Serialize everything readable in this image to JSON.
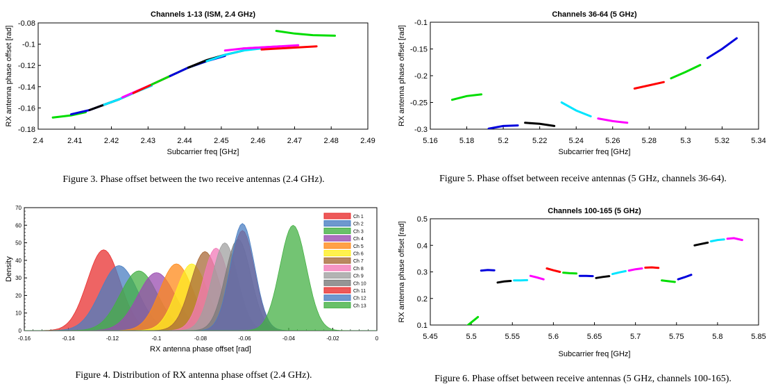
{
  "captions": {
    "fig3": "Figure 3.  Phase offset between the two receive antennas (2.4 GHz).",
    "fig4": "Figure 4.  Distribution of RX antenna phase offset (2.4 GHz).",
    "fig5": "Figure 5.  Phase offset between receive antennas (5 GHz, channels 36-64).",
    "fig6": "Figure 6.  Phase offset between receive antennas (5 GHz, channels 100-165)."
  },
  "chart_data": [
    {
      "id": "fig3",
      "type": "line",
      "title": "Channels 1-13 (ISM, 2.4 GHz)",
      "xlabel": "Subcarrier freq [GHz]",
      "ylabel": "RX antenna phase offset [rad]",
      "xlim": [
        2.4,
        2.49
      ],
      "ylim": [
        -0.18,
        -0.08
      ],
      "xticks": [
        "2.4",
        "2.41",
        "2.42",
        "2.43",
        "2.44",
        "2.45",
        "2.46",
        "2.47",
        "2.48",
        "2.49"
      ],
      "yticks": [
        "-0.18",
        "-0.16",
        "-0.14",
        "-0.12",
        "-0.1",
        "-0.08"
      ],
      "series": [
        {
          "color": "#00dd00",
          "x": [
            2.404,
            2.409,
            2.413
          ],
          "y": [
            -0.169,
            -0.167,
            -0.164
          ]
        },
        {
          "color": "#0000dd",
          "x": [
            2.409,
            2.414,
            2.418,
            2.422
          ],
          "y": [
            -0.166,
            -0.162,
            -0.157,
            -0.152
          ]
        },
        {
          "color": "#000000",
          "x": [
            2.414,
            2.418,
            2.422,
            2.426
          ],
          "y": [
            -0.162,
            -0.157,
            -0.152,
            -0.146
          ]
        },
        {
          "color": "#00e5ff",
          "x": [
            2.418,
            2.422,
            2.426,
            2.431
          ],
          "y": [
            -0.157,
            -0.152,
            -0.146,
            -0.139
          ]
        },
        {
          "color": "#ff00ff",
          "x": [
            2.423,
            2.427,
            2.431,
            2.436
          ],
          "y": [
            -0.15,
            -0.144,
            -0.138,
            -0.13
          ]
        },
        {
          "color": "#ff0000",
          "x": [
            2.426,
            2.431,
            2.436,
            2.441
          ],
          "y": [
            -0.146,
            -0.138,
            -0.13,
            -0.122
          ]
        },
        {
          "color": "#00dd00",
          "x": [
            2.431,
            2.436,
            2.441,
            2.446
          ],
          "y": [
            -0.138,
            -0.13,
            -0.122,
            -0.116
          ]
        },
        {
          "color": "#0000dd",
          "x": [
            2.436,
            2.441,
            2.446,
            2.451
          ],
          "y": [
            -0.13,
            -0.122,
            -0.116,
            -0.111
          ]
        },
        {
          "color": "#000000",
          "x": [
            2.441,
            2.446,
            2.451,
            2.456
          ],
          "y": [
            -0.122,
            -0.115,
            -0.11,
            -0.106
          ]
        },
        {
          "color": "#00e5ff",
          "x": [
            2.446,
            2.451,
            2.456,
            2.461
          ],
          "y": [
            -0.116,
            -0.11,
            -0.106,
            -0.104
          ]
        },
        {
          "color": "#ff00ff",
          "x": [
            2.451,
            2.456,
            2.461,
            2.466
          ],
          "y": [
            -0.106,
            -0.104,
            -0.103,
            -0.102
          ]
        },
        {
          "color": "#ff00ff",
          "x": [
            2.456,
            2.461,
            2.466,
            2.471
          ],
          "y": [
            -0.104,
            -0.103,
            -0.102,
            -0.101
          ]
        },
        {
          "color": "#ff0000",
          "x": [
            2.461,
            2.466,
            2.471,
            2.476
          ],
          "y": [
            -0.105,
            -0.104,
            -0.103,
            -0.102
          ]
        },
        {
          "color": "#00dd00",
          "x": [
            2.465,
            2.47,
            2.475,
            2.481
          ],
          "y": [
            -0.0875,
            -0.09,
            -0.0915,
            -0.092
          ]
        }
      ]
    },
    {
      "id": "fig4",
      "type": "area",
      "title": "",
      "xlabel": "RX antenna phase offset [rad]",
      "ylabel": "Density",
      "xlim": [
        -0.16,
        0
      ],
      "ylim": [
        0,
        70
      ],
      "xticks": [
        "-0.16",
        "-0.14",
        "-0.12",
        "-0.1",
        "-0.08",
        "-0.06",
        "-0.04",
        "-0.02",
        "0"
      ],
      "yticks": [
        "0",
        "10",
        "20",
        "30",
        "40",
        "50",
        "60",
        "70"
      ],
      "legend_position": "top-right",
      "series": [
        {
          "name": "Ch 1",
          "color": "#e83030",
          "mean": -0.124,
          "peak": 46,
          "sigma": 0.0075
        },
        {
          "name": "Ch 2",
          "color": "#4a7ec2",
          "mean": -0.117,
          "peak": 37,
          "sigma": 0.0085
        },
        {
          "name": "Ch 3",
          "color": "#44b044",
          "mean": -0.108,
          "peak": 34,
          "sigma": 0.0085
        },
        {
          "name": "Ch 4",
          "color": "#9a4cb0",
          "mean": -0.1,
          "peak": 33,
          "sigma": 0.0085
        },
        {
          "name": "Ch 5",
          "color": "#ff8a1a",
          "mean": -0.091,
          "peak": 38,
          "sigma": 0.0075
        },
        {
          "name": "Ch 6",
          "color": "#ffee22",
          "mean": -0.084,
          "peak": 38,
          "sigma": 0.007
        },
        {
          "name": "Ch 7",
          "color": "#a86a38",
          "mean": -0.078,
          "peak": 45,
          "sigma": 0.0065
        },
        {
          "name": "Ch 8",
          "color": "#f27ab8",
          "mean": -0.073,
          "peak": 47,
          "sigma": 0.006
        },
        {
          "name": "Ch 9",
          "color": "#a0a0a0",
          "mean": -0.069,
          "peak": 50,
          "sigma": 0.0058
        },
        {
          "name": "Ch 10",
          "color": "#7a7a7a",
          "mean": -0.063,
          "peak": 52,
          "sigma": 0.0058
        },
        {
          "name": "Ch 11",
          "color": "#e83030",
          "mean": -0.061,
          "peak": 57,
          "sigma": 0.0055
        },
        {
          "name": "Ch 12",
          "color": "#4a7ec2",
          "mean": -0.061,
          "peak": 61,
          "sigma": 0.0055
        },
        {
          "name": "Ch 13",
          "color": "#44b044",
          "mean": -0.038,
          "peak": 60,
          "sigma": 0.006
        }
      ]
    },
    {
      "id": "fig5",
      "type": "line",
      "title": "Channels 36-64 (5 GHz)",
      "xlabel": "Subcarrier freq [GHz]",
      "ylabel": "RX antenna phase offset [rad]",
      "xlim": [
        5.16,
        5.34
      ],
      "ylim": [
        -0.3,
        -0.1
      ],
      "xticks": [
        "5.16",
        "5.18",
        "5.2",
        "5.22",
        "5.24",
        "5.26",
        "5.28",
        "5.3",
        "5.32",
        "5.34"
      ],
      "yticks": [
        "-0.3",
        "-0.25",
        "-0.2",
        "-0.15",
        "-0.1"
      ],
      "series": [
        {
          "color": "#00dd00",
          "x": [
            5.172,
            5.18,
            5.188
          ],
          "y": [
            -0.245,
            -0.238,
            -0.235
          ]
        },
        {
          "color": "#0000dd",
          "x": [
            5.192,
            5.2,
            5.208
          ],
          "y": [
            -0.299,
            -0.294,
            -0.293
          ]
        },
        {
          "color": "#000000",
          "x": [
            5.212,
            5.22,
            5.228
          ],
          "y": [
            -0.288,
            -0.29,
            -0.294
          ]
        },
        {
          "color": "#00e5ff",
          "x": [
            5.232,
            5.24,
            5.248
          ],
          "y": [
            -0.25,
            -0.265,
            -0.276
          ]
        },
        {
          "color": "#ff00ff",
          "x": [
            5.252,
            5.26,
            5.268
          ],
          "y": [
            -0.28,
            -0.285,
            -0.288
          ]
        },
        {
          "color": "#ff0000",
          "x": [
            5.272,
            5.28,
            5.288
          ],
          "y": [
            -0.224,
            -0.218,
            -0.212
          ]
        },
        {
          "color": "#00dd00",
          "x": [
            5.292,
            5.3,
            5.308
          ],
          "y": [
            -0.205,
            -0.193,
            -0.18
          ]
        },
        {
          "color": "#0000dd",
          "x": [
            5.312,
            5.32,
            5.328
          ],
          "y": [
            -0.167,
            -0.15,
            -0.13
          ]
        }
      ]
    },
    {
      "id": "fig6",
      "type": "line",
      "title": "Channels 100-165 (5 GHz)",
      "xlabel": "Subcarrier freq [GHz]",
      "ylabel": "RX antenna phase offset [rad]",
      "xlim": [
        5.45,
        5.85
      ],
      "ylim": [
        0.1,
        0.5
      ],
      "xticks": [
        "5.45",
        "5.5",
        "5.55",
        "5.6",
        "5.65",
        "5.7",
        "5.75",
        "5.8",
        "5.85"
      ],
      "yticks": [
        "0.1",
        "0.2",
        "0.3",
        "0.4",
        "0.5"
      ],
      "series": [
        {
          "color": "#00dd00",
          "x": [
            5.492,
            5.5,
            5.508
          ],
          "y": [
            0.09,
            0.11,
            0.13
          ]
        },
        {
          "color": "#0000dd",
          "x": [
            5.512,
            5.52,
            5.528
          ],
          "y": [
            0.305,
            0.307,
            0.306
          ]
        },
        {
          "color": "#000000",
          "x": [
            5.532,
            5.54,
            5.548
          ],
          "y": [
            0.26,
            0.264,
            0.266
          ]
        },
        {
          "color": "#00e5ff",
          "x": [
            5.552,
            5.56,
            5.568
          ],
          "y": [
            0.268,
            0.268,
            0.269
          ]
        },
        {
          "color": "#ff00ff",
          "x": [
            5.572,
            5.58,
            5.588
          ],
          "y": [
            0.285,
            0.279,
            0.272
          ]
        },
        {
          "color": "#ff0000",
          "x": [
            5.592,
            5.6,
            5.608
          ],
          "y": [
            0.313,
            0.306,
            0.3
          ]
        },
        {
          "color": "#00dd00",
          "x": [
            5.612,
            5.62,
            5.628
          ],
          "y": [
            0.297,
            0.295,
            0.294
          ]
        },
        {
          "color": "#0000dd",
          "x": [
            5.632,
            5.64,
            5.648
          ],
          "y": [
            0.285,
            0.285,
            0.284
          ]
        },
        {
          "color": "#000000",
          "x": [
            5.652,
            5.66,
            5.668
          ],
          "y": [
            0.277,
            0.281,
            0.284
          ]
        },
        {
          "color": "#00e5ff",
          "x": [
            5.672,
            5.68,
            5.688
          ],
          "y": [
            0.292,
            0.298,
            0.303
          ]
        },
        {
          "color": "#ff00ff",
          "x": [
            5.692,
            5.7,
            5.708
          ],
          "y": [
            0.305,
            0.31,
            0.313
          ]
        },
        {
          "color": "#ff0000",
          "x": [
            5.712,
            5.72,
            5.728
          ],
          "y": [
            0.316,
            0.317,
            0.315
          ]
        },
        {
          "color": "#00dd00",
          "x": [
            5.732,
            5.74,
            5.748
          ],
          "y": [
            0.268,
            0.265,
            0.262
          ]
        },
        {
          "color": "#0000dd",
          "x": [
            5.752,
            5.76,
            5.768
          ],
          "y": [
            0.272,
            0.28,
            0.289
          ]
        },
        {
          "color": "#000000",
          "x": [
            5.772,
            5.78,
            5.788
          ],
          "y": [
            0.4,
            0.405,
            0.41
          ]
        },
        {
          "color": "#00e5ff",
          "x": [
            5.792,
            5.8,
            5.808
          ],
          "y": [
            0.415,
            0.42,
            0.422
          ]
        },
        {
          "color": "#ff00ff",
          "x": [
            5.812,
            5.82,
            5.83
          ],
          "y": [
            0.425,
            0.427,
            0.42
          ]
        }
      ]
    }
  ]
}
